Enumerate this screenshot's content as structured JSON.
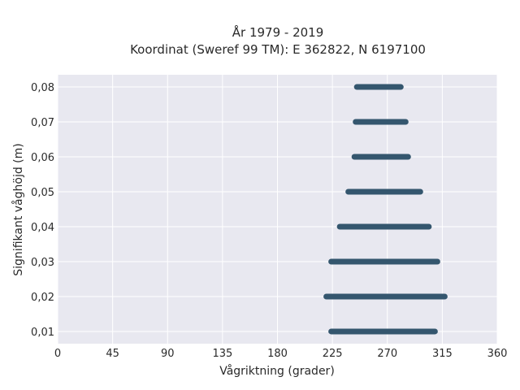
{
  "chart_data": {
    "type": "scatter",
    "title": "År 1979 - 2019",
    "subtitle": "Koordinat (Sweref 99 TM): E 362822, N 6197100",
    "xlabel": "Vågriktning (grader)",
    "ylabel": "Signifikant våghöjd (m)",
    "xlim": [
      0,
      360
    ],
    "ylim": [
      0.0065,
      0.0835
    ],
    "xticks": [
      0,
      45,
      90,
      135,
      180,
      225,
      270,
      315,
      360
    ],
    "xtick_labels": [
      "0",
      "45",
      "90",
      "135",
      "180",
      "225",
      "270",
      "315",
      "360"
    ],
    "yticks": [
      0.01,
      0.02,
      0.03,
      0.04,
      0.05,
      0.06,
      0.07,
      0.08
    ],
    "ytick_labels": [
      "0,01",
      "0,02",
      "0,03",
      "0,04",
      "0,05",
      "0,06",
      "0,07",
      "0,08"
    ],
    "grid": true,
    "background_color": "#e8e8f0",
    "marker_color": "#34566e",
    "series": [
      {
        "ranges": [
          {
            "y": 0.01,
            "x_min": 224,
            "x_max": 309
          },
          {
            "y": 0.02,
            "x_min": 220,
            "x_max": 317
          },
          {
            "y": 0.03,
            "x_min": 224,
            "x_max": 311
          },
          {
            "y": 0.04,
            "x_min": 231,
            "x_max": 304
          },
          {
            "y": 0.05,
            "x_min": 238,
            "x_max": 297
          },
          {
            "y": 0.06,
            "x_min": 243,
            "x_max": 287
          },
          {
            "y": 0.07,
            "x_min": 244,
            "x_max": 285
          },
          {
            "y": 0.08,
            "x_min": 245,
            "x_max": 281
          }
        ]
      }
    ]
  }
}
